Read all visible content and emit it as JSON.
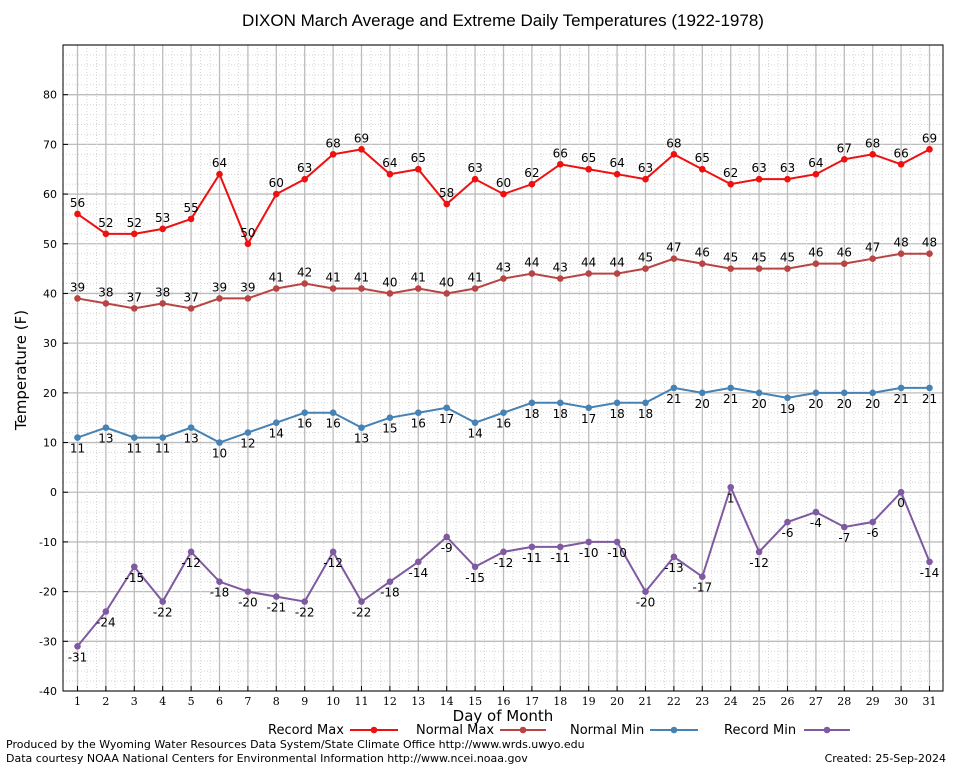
{
  "chart_data": {
    "type": "line",
    "title": "DIXON March Average and Extreme Daily Temperatures (1922-1978)",
    "xlabel": "Day of Month",
    "ylabel": "Temperature (F)",
    "ylim": [
      -40,
      90
    ],
    "yticks": [
      -40,
      -30,
      -20,
      -10,
      0,
      10,
      20,
      30,
      40,
      50,
      60,
      70,
      80
    ],
    "x": [
      1,
      2,
      3,
      4,
      5,
      6,
      7,
      8,
      9,
      10,
      11,
      12,
      13,
      14,
      15,
      16,
      17,
      18,
      19,
      20,
      21,
      22,
      23,
      24,
      25,
      26,
      27,
      28,
      29,
      30,
      31
    ],
    "grid": true,
    "legend_position": "bottom",
    "series": [
      {
        "name": "Record Max",
        "color": "#ee1111",
        "label_pos": "above",
        "values": [
          56,
          52,
          52,
          53,
          55,
          64,
          50,
          60,
          63,
          68,
          69,
          64,
          65,
          58,
          63,
          60,
          62,
          66,
          65,
          64,
          63,
          68,
          65,
          62,
          63,
          63,
          64,
          67,
          68,
          66,
          69
        ]
      },
      {
        "name": "Normal Max",
        "color": "#b84444",
        "label_pos": "above",
        "values": [
          39,
          38,
          37,
          38,
          37,
          39,
          39,
          41,
          42,
          41,
          41,
          40,
          41,
          40,
          41,
          43,
          44,
          43,
          44,
          44,
          45,
          47,
          46,
          45,
          45,
          45,
          46,
          46,
          47,
          48,
          48
        ]
      },
      {
        "name": "Normal Min",
        "color": "#4682b4",
        "label_pos": "below",
        "values": [
          11,
          13,
          11,
          11,
          13,
          10,
          12,
          14,
          16,
          16,
          13,
          15,
          16,
          17,
          14,
          16,
          18,
          18,
          17,
          18,
          18,
          21,
          20,
          21,
          20,
          19,
          20,
          20,
          20,
          21,
          21
        ]
      },
      {
        "name": "Record Min",
        "color": "#7f5aa0",
        "label_pos": "below",
        "values": [
          -31,
          -24,
          -15,
          -22,
          -12,
          -18,
          -20,
          -21,
          -22,
          -12,
          -22,
          -18,
          -14,
          -9,
          -15,
          -12,
          -11,
          -11,
          -10,
          -10,
          -20,
          -13,
          -17,
          1,
          -12,
          -6,
          -4,
          -7,
          -6,
          0,
          -14
        ]
      }
    ]
  },
  "footer": {
    "produced_by": "Produced by the Wyoming Water Resources Data System/State Climate Office http://www.wrds.uwyo.edu",
    "data_courtesy": "Data courtesy NOAA National Centers for Environmental Information http://www.ncei.noaa.gov",
    "created": "Created:  25-Sep-2024"
  }
}
